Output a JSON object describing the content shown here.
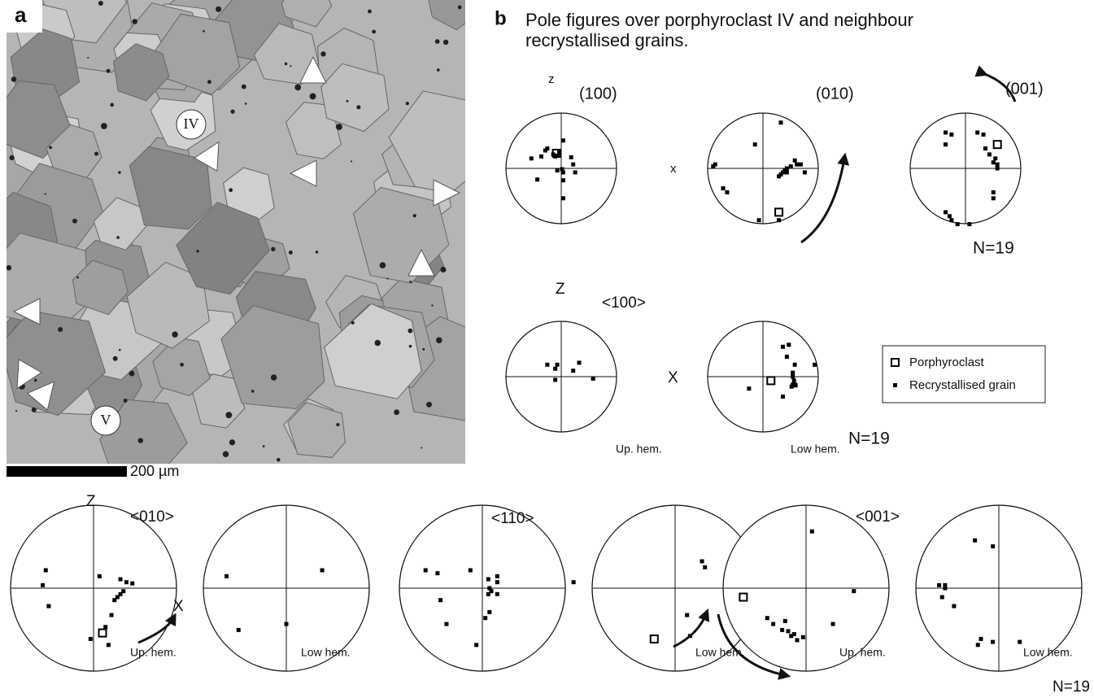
{
  "panel_a": {
    "label": "a",
    "grains": [
      "IV",
      "V"
    ],
    "scale_bar": "200 µm"
  },
  "panel_b": {
    "label": "b",
    "title": "Pole figures over porphyroclast IV and neighbour recrystallised grains.",
    "planes": {
      "axis_z": "z",
      "axis_x": "x",
      "labels": [
        "(100)",
        "(010)",
        "(001)"
      ],
      "count": "N=19"
    },
    "directions_100": {
      "axis_z": "Z",
      "axis_x": "X",
      "label": "<100>",
      "hemispheres": [
        "Up. hem.",
        "Low hem."
      ],
      "count": "N=19"
    },
    "legend": [
      "Porphyroclast",
      "Recrystallised grain"
    ],
    "directions_row": {
      "axis_z": "Z",
      "axis_x": "X",
      "labels": [
        "<010>",
        "<110>",
        "<001>"
      ],
      "hemispheres": [
        "Up. hem.",
        "Low hem.",
        "Low hem.",
        "Up. hem.",
        "Low hem."
      ],
      "count": "N=19"
    }
  }
}
